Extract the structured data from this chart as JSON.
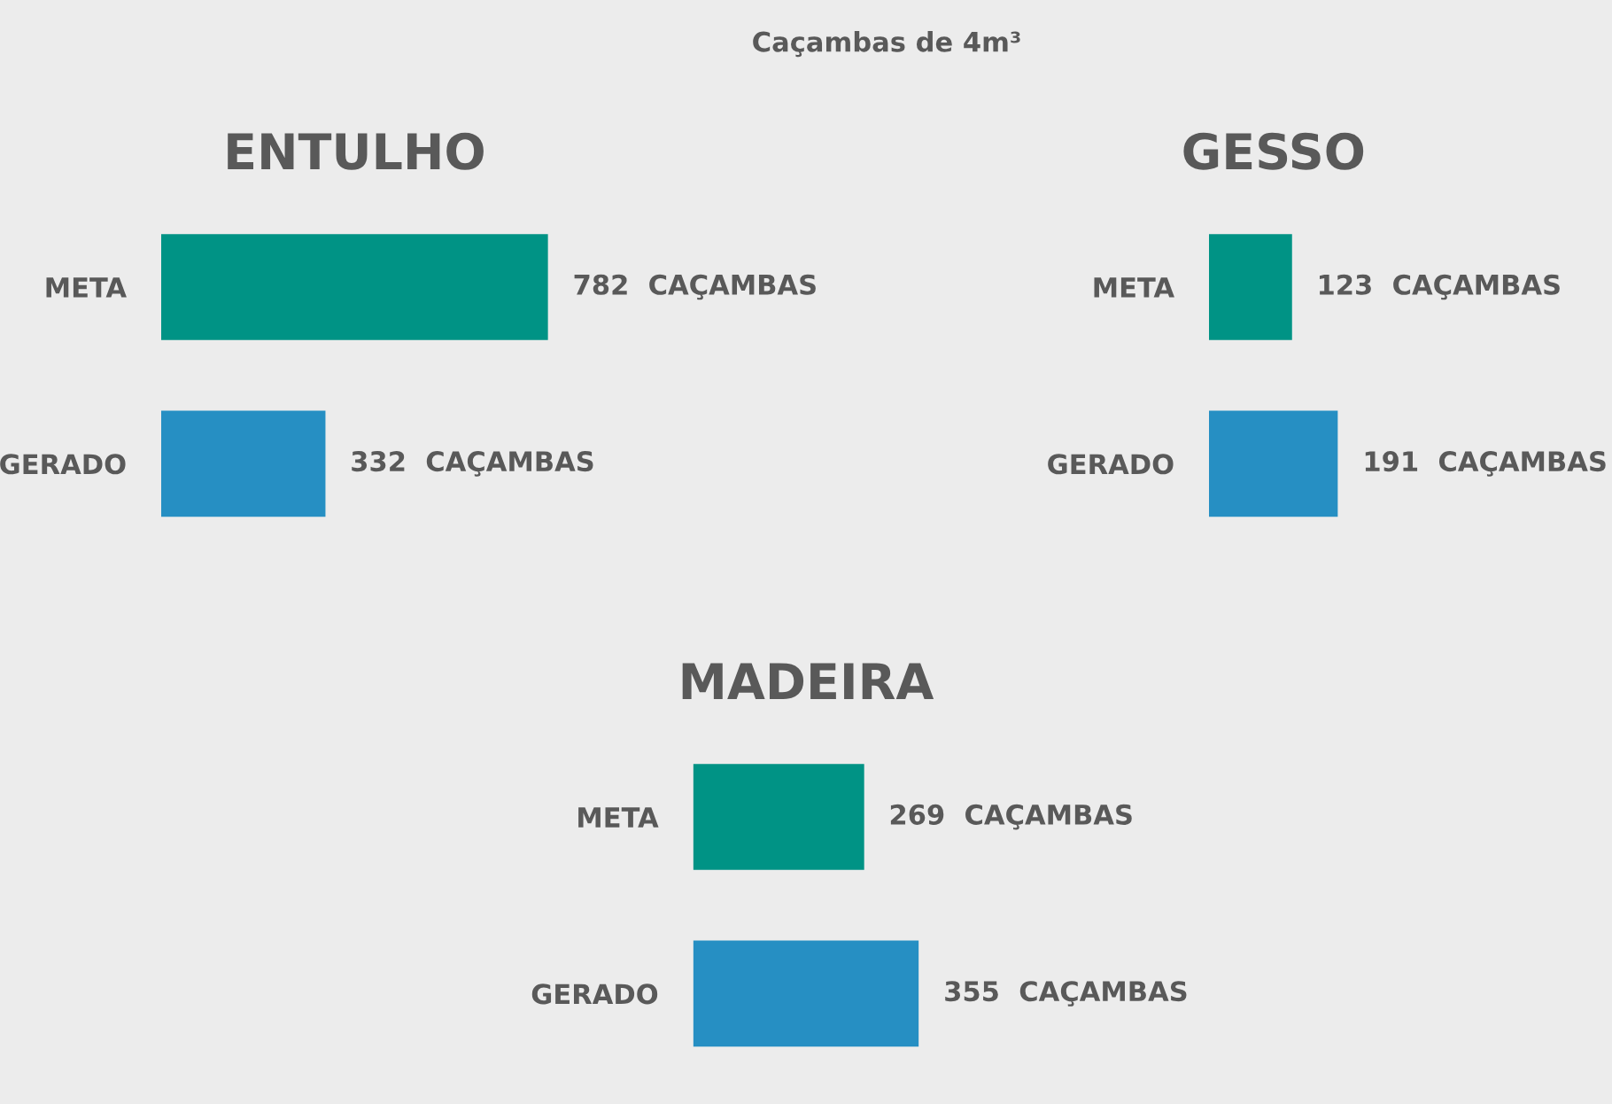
{
  "chart_data": [
    {
      "type": "bar",
      "orientation": "horizontal",
      "title": "ENTULHO",
      "annotations": [
        "Caçambas de 4m³"
      ],
      "categories": [
        "META",
        "GERADO"
      ],
      "values": [
        782,
        332
      ],
      "colors": [
        "#009385",
        "#268fc3"
      ],
      "value_labels": [
        "782  CAÇAMBAS",
        "332  CAÇAMBAS"
      ]
    },
    {
      "type": "bar",
      "orientation": "horizontal",
      "title": "GESSO",
      "categories": [
        "META",
        "GERADO"
      ],
      "values": [
        123,
        191
      ],
      "colors": [
        "#009385",
        "#268fc3"
      ],
      "value_labels": [
        "123  CAÇAMBAS",
        "191  CAÇAMBAS"
      ]
    },
    {
      "type": "bar",
      "orientation": "horizontal",
      "title": "MADEIRA",
      "categories": [
        "META",
        "GERADO"
      ],
      "values": [
        269,
        355
      ],
      "colors": [
        "#009385",
        "#268fc3"
      ],
      "value_labels": [
        "269  CAÇAMBAS",
        "355  CAÇAMBAS"
      ]
    }
  ]
}
